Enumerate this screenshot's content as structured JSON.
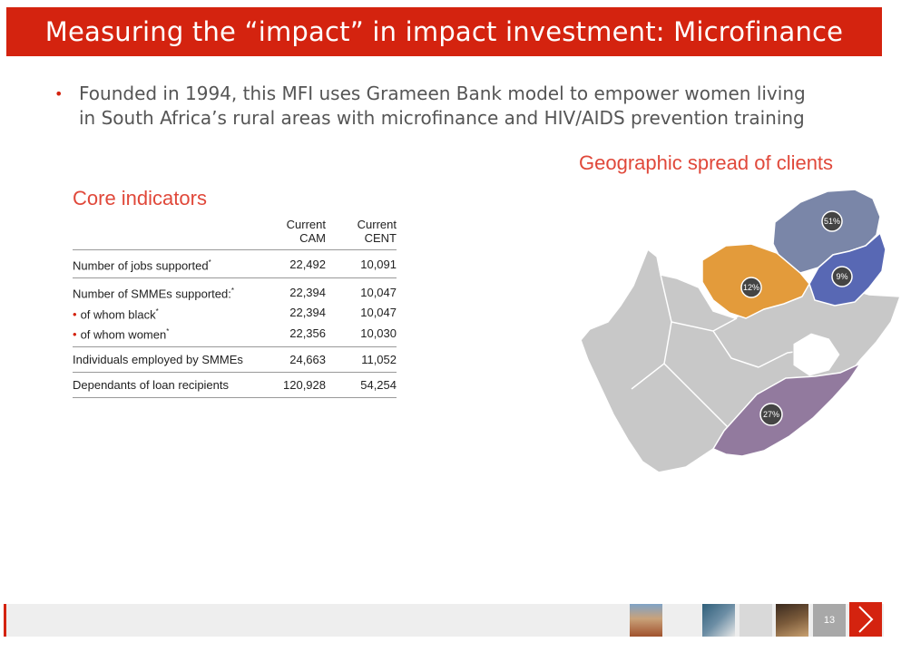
{
  "slide": {
    "title": "Measuring the “impact” in impact investment: Microfinance",
    "bullet": "Founded in 1994, this MFI uses Grameen Bank model to empower women living in South Africa’s rural areas with microfinance and HIV/AIDS prevention training",
    "page_number": "13"
  },
  "core": {
    "heading": "Core indicators",
    "col1": [
      "Current",
      "CAM"
    ],
    "col2": [
      "Current",
      "CENT"
    ],
    "rows": [
      {
        "label": "Number of jobs supported",
        "star": "*",
        "cam": "22,492",
        "cent": "10,091"
      },
      {
        "label": "Number of SMMEs supported:",
        "star": "*",
        "cam": "22,394",
        "cent": "10,047"
      },
      {
        "label": "of whom black",
        "star": "*",
        "cam": "22,394",
        "cent": "10,047"
      },
      {
        "label": "of whom women",
        "star": "*",
        "cam": "22,356",
        "cent": "10,030"
      },
      {
        "label": "Individuals employed by SMMEs",
        "cam": "24,663",
        "cent": "11,052"
      },
      {
        "label": "Dependants of loan recipients",
        "cam": "120,928",
        "cent": "54,254"
      }
    ]
  },
  "geo": {
    "heading": "Geographic spread of clients",
    "regions": [
      {
        "name": "north",
        "share": "51%",
        "color": "#7a86a8"
      },
      {
        "name": "mpumalanga",
        "share": "9%",
        "color": "#5868b4"
      },
      {
        "name": "free-state-north",
        "share": "12%",
        "color": "#e39b3b"
      },
      {
        "name": "eastern-cape",
        "share": "27%",
        "color": "#927a9e"
      }
    ],
    "base_color": "#c8c8c8"
  },
  "colors": {
    "accent": "#d4230f",
    "heading": "#e0483a"
  }
}
